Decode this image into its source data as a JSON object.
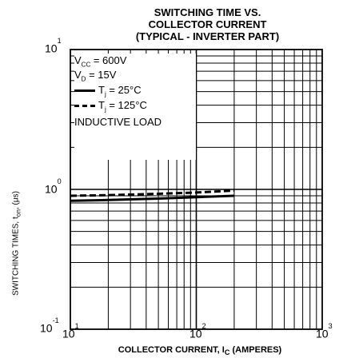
{
  "chart_data": {
    "type": "line",
    "title_lines": [
      "SWITCHING TIME VS.",
      "COLLECTOR CURRENT",
      "(TYPICAL - INVERTER PART)"
    ],
    "ylabel": "SWITCHING TIMES, t",
    "ylabel_sub": "on",
    "ylabel_unit": ", (μs)",
    "xlabel": "COLLECTOR CURRENT, I",
    "xlabel_sub": "C",
    "xlabel_unit": " (AMPERES)",
    "x_scale": "log",
    "y_scale": "log",
    "xlim": [
      10,
      1000
    ],
    "ylim": [
      0.1,
      10
    ],
    "x_ticks": [
      {
        "base": "10",
        "exp": "1"
      },
      {
        "base": "10",
        "exp": "2"
      },
      {
        "base": "10",
        "exp": "3"
      }
    ],
    "y_ticks": [
      {
        "base": "10",
        "exp": "1"
      },
      {
        "base": "10",
        "exp": "0"
      },
      {
        "base": "10",
        "exp": "-1"
      }
    ],
    "grid": true,
    "conditions": {
      "vcc": {
        "main": "V",
        "sub": "CC",
        "rest": " = 600V"
      },
      "vd": {
        "main": "V",
        "sub": "D",
        "rest": " = 15V"
      },
      "load": "INDUCTIVE LOAD"
    },
    "series": [
      {
        "name_main": "T",
        "name_sub": "j",
        "name_rest": " = 25°C",
        "style": "solid",
        "color": "#000000",
        "x": [
          10,
          20,
          50,
          100,
          200
        ],
        "y": [
          0.83,
          0.84,
          0.86,
          0.88,
          0.9
        ]
      },
      {
        "name_main": "T",
        "name_sub": "j",
        "name_rest": " = 125°C",
        "style": "dashed",
        "color": "#000000",
        "x": [
          10,
          20,
          50,
          100,
          200
        ],
        "y": [
          0.9,
          0.91,
          0.93,
          0.95,
          0.98
        ]
      }
    ]
  }
}
